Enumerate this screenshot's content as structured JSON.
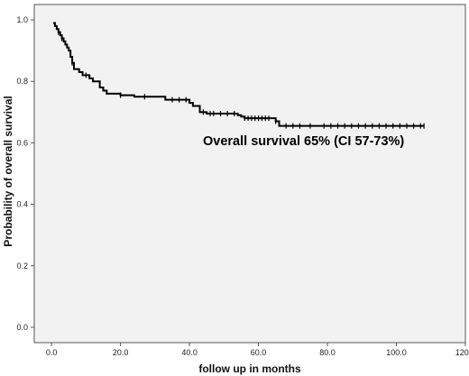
{
  "chart_data": {
    "type": "line",
    "title": "",
    "xlabel": "follow up in months",
    "ylabel": "Probability of overall survival",
    "xlim": [
      -5,
      120
    ],
    "ylim": [
      -0.05,
      1.05
    ],
    "x_ticks": [
      0,
      20,
      40,
      60,
      80,
      100,
      120
    ],
    "x_tick_labels": [
      "0.0",
      "20.0",
      "40.0",
      "60.0",
      "80.0",
      "100.0",
      "120.0"
    ],
    "y_ticks": [
      0,
      0.2,
      0.4,
      0.6,
      0.8,
      1.0
    ],
    "y_tick_labels": [
      "0.0",
      "0.2",
      "0.4",
      "0.6",
      "0.8",
      "1.0"
    ],
    "grid": false,
    "annotation": "Overall survival 65% (CI 57-73%)",
    "colors": {
      "plot_background": "#f2f2f2",
      "line": "#000000"
    },
    "series": [
      {
        "style": "step",
        "steps": [
          [
            0.5,
            0.99
          ],
          [
            1,
            0.98
          ],
          [
            1.5,
            0.97
          ],
          [
            2,
            0.96
          ],
          [
            2.5,
            0.95
          ],
          [
            3,
            0.94
          ],
          [
            3.5,
            0.93
          ],
          [
            4,
            0.92
          ],
          [
            4.5,
            0.91
          ],
          [
            5,
            0.9
          ],
          [
            5.5,
            0.88
          ],
          [
            6,
            0.86
          ],
          [
            6.5,
            0.84
          ],
          [
            8,
            0.83
          ],
          [
            9,
            0.82
          ],
          [
            11,
            0.81
          ],
          [
            12,
            0.8
          ],
          [
            14,
            0.78
          ],
          [
            15,
            0.77
          ],
          [
            16,
            0.76
          ],
          [
            20,
            0.755
          ],
          [
            24,
            0.75
          ],
          [
            33,
            0.74
          ],
          [
            40,
            0.73
          ],
          [
            41,
            0.72
          ],
          [
            43,
            0.7
          ],
          [
            45,
            0.695
          ],
          [
            54,
            0.69
          ],
          [
            55,
            0.685
          ],
          [
            56,
            0.68
          ],
          [
            65,
            0.67
          ],
          [
            66,
            0.655
          ],
          [
            108,
            0.655
          ]
        ],
        "censored_x": [
          2,
          3,
          6,
          10,
          20,
          27,
          35,
          37,
          39,
          44,
          46,
          47,
          49,
          51,
          53,
          56,
          57,
          58,
          59,
          60,
          61,
          62,
          63,
          65,
          68,
          70,
          72,
          75,
          79,
          81,
          83,
          85,
          87,
          89,
          91,
          93,
          95,
          97,
          99,
          101,
          103,
          105,
          107,
          108
        ]
      }
    ]
  }
}
